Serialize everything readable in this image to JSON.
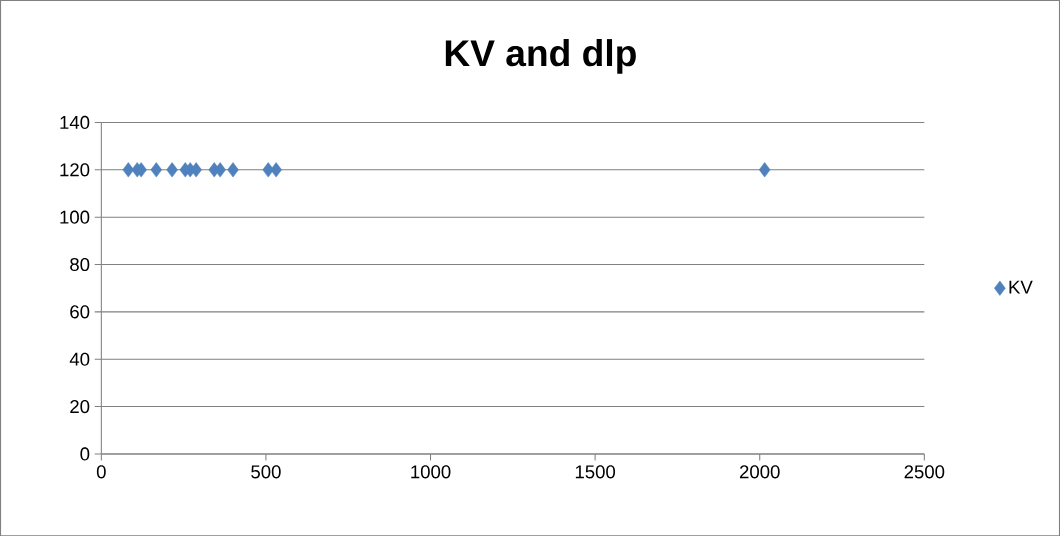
{
  "chart_data": {
    "type": "scatter",
    "title": "KV and dlp",
    "x": [
      82,
      109,
      121,
      167,
      215,
      255,
      270,
      288,
      343,
      361,
      400,
      507,
      531,
      2015
    ],
    "series": [
      {
        "name": "KV",
        "color": "#4f81bd",
        "values": [
          120,
          120,
          120,
          120,
          120,
          120,
          120,
          120,
          120,
          120,
          120,
          120,
          120,
          120
        ]
      }
    ],
    "xlim": [
      0,
      2500
    ],
    "xticks": [
      0,
      500,
      1000,
      1500,
      2000,
      2500
    ],
    "ylim": [
      0,
      140
    ],
    "yticks": [
      0,
      20,
      40,
      60,
      80,
      100,
      120,
      140
    ],
    "grid": "y",
    "legend": "right",
    "marker": "diamond"
  }
}
